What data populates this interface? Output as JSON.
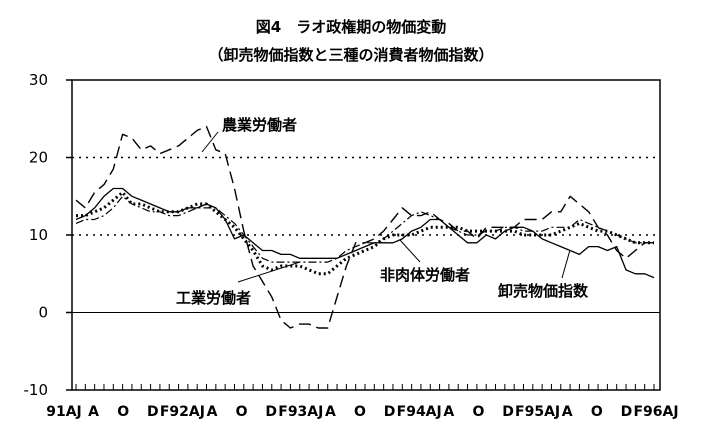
{
  "chart_data": {
    "type": "line",
    "title": "図4　ラオ政権期の物価変動",
    "subtitle": "（卸売物価指数と三種の消費者物価指数）",
    "xlabel": "",
    "ylabel": "",
    "ylim": [
      -10,
      30
    ],
    "yticks": [
      "30",
      "20",
      "10",
      "0",
      "-10"
    ],
    "x_tick_labels": [
      "91AJ",
      "A",
      "O",
      "D",
      "F92AJ",
      "A",
      "O",
      "D",
      "F93AJ",
      "A",
      "O",
      "D",
      "F94AJ",
      "A",
      "O",
      "D",
      "F95AJ",
      "A",
      "O",
      "D",
      "F96AJ"
    ],
    "reference_lines": [
      20,
      10
    ],
    "zero_line": 0,
    "grid": false,
    "x": [
      "1991-04",
      "1991-05",
      "1991-06",
      "1991-07",
      "1991-08",
      "1991-09",
      "1991-10",
      "1991-11",
      "1991-12",
      "1992-01",
      "1992-02",
      "1992-03",
      "1992-04",
      "1992-05",
      "1992-06",
      "1992-07",
      "1992-08",
      "1992-09",
      "1992-10",
      "1992-11",
      "1992-12",
      "1993-01",
      "1993-02",
      "1993-03",
      "1993-04",
      "1993-05",
      "1993-06",
      "1993-07",
      "1993-08",
      "1993-09",
      "1993-10",
      "1993-11",
      "1993-12",
      "1994-01",
      "1994-02",
      "1994-03",
      "1994-04",
      "1994-05",
      "1994-06",
      "1994-07",
      "1994-08",
      "1994-09",
      "1994-10",
      "1994-11",
      "1994-12",
      "1995-01",
      "1995-02",
      "1995-03",
      "1995-04",
      "1995-05",
      "1995-06",
      "1995-07",
      "1995-08",
      "1995-09",
      "1995-10",
      "1995-11",
      "1995-12",
      "1996-01",
      "1996-02",
      "1996-03",
      "1996-04",
      "1996-05",
      "1996-06"
    ],
    "series": [
      {
        "name": "農業労働者",
        "style": "dashed",
        "values": [
          14.5,
          13.5,
          15.5,
          16.5,
          18.5,
          23,
          22.5,
          21,
          21.5,
          20.5,
          21,
          21.5,
          22.5,
          23.5,
          24,
          21,
          20.5,
          16,
          10.5,
          6,
          4,
          2,
          -1,
          -2,
          -1.5,
          -1.5,
          -2,
          -2,
          2,
          6,
          9,
          9,
          9.5,
          10.5,
          12,
          13.5,
          12.5,
          12.5,
          13,
          12,
          11.5,
          10.5,
          10.5,
          9.5,
          11,
          11,
          11,
          11,
          12,
          12,
          12,
          13,
          13,
          15,
          14,
          13,
          11,
          10,
          8,
          7,
          8,
          9,
          9
        ]
      },
      {
        "name": "工業労働者",
        "style": "dotted",
        "values": [
          12.5,
          12.5,
          13,
          13.5,
          14.5,
          15.5,
          14,
          14,
          13.5,
          13,
          13,
          13,
          13.5,
          14,
          14,
          13,
          12,
          11,
          9.5,
          8,
          6,
          5.5,
          6,
          6,
          6,
          5.5,
          5,
          5,
          6,
          7,
          7.5,
          8,
          8.5,
          9.5,
          10,
          10,
          10,
          10.5,
          11,
          11,
          11,
          11,
          10.5,
          10.5,
          10.5,
          10.5,
          10.5,
          10.5,
          10,
          10,
          10,
          10,
          10.5,
          11,
          11.5,
          11,
          10.5,
          10.5,
          10,
          9.5,
          9,
          9,
          9
        ]
      },
      {
        "name": "非肉体労働者",
        "style": "dash-dot",
        "values": [
          11.5,
          12,
          12,
          12.5,
          13.5,
          15,
          14,
          13.5,
          13,
          13,
          12.5,
          12.5,
          13,
          13.5,
          13.5,
          13.5,
          12.5,
          11.5,
          10,
          8.5,
          7,
          6.5,
          6.5,
          6.5,
          6.5,
          6.5,
          6.5,
          6.5,
          7,
          8,
          8.5,
          9,
          9,
          9.5,
          10.5,
          11.5,
          12.5,
          13,
          12.5,
          12,
          11,
          10.5,
          10,
          10,
          10.5,
          10.5,
          11,
          11,
          10.5,
          10.5,
          10.5,
          11,
          11,
          11,
          12,
          11.5,
          11,
          10.5,
          10,
          9.5,
          9,
          9,
          9
        ]
      },
      {
        "name": "卸売物価指数",
        "style": "solid",
        "values": [
          12,
          12.5,
          13.5,
          15,
          16,
          16,
          15,
          14.5,
          14,
          13.5,
          13,
          13,
          13.5,
          13.5,
          14,
          13.5,
          12,
          9.5,
          10,
          9,
          8,
          8,
          7.5,
          7.5,
          7,
          7,
          7,
          7,
          7,
          7.5,
          8,
          8.5,
          9,
          9,
          9,
          9.5,
          10.5,
          11,
          12,
          12,
          11,
          10,
          9,
          9,
          10,
          9.5,
          10.5,
          11,
          11,
          10.5,
          9.5,
          9,
          8.5,
          8,
          7.5,
          8.5,
          8.5,
          8,
          8.5,
          5.5,
          5,
          5,
          4.5
        ]
      }
    ]
  }
}
